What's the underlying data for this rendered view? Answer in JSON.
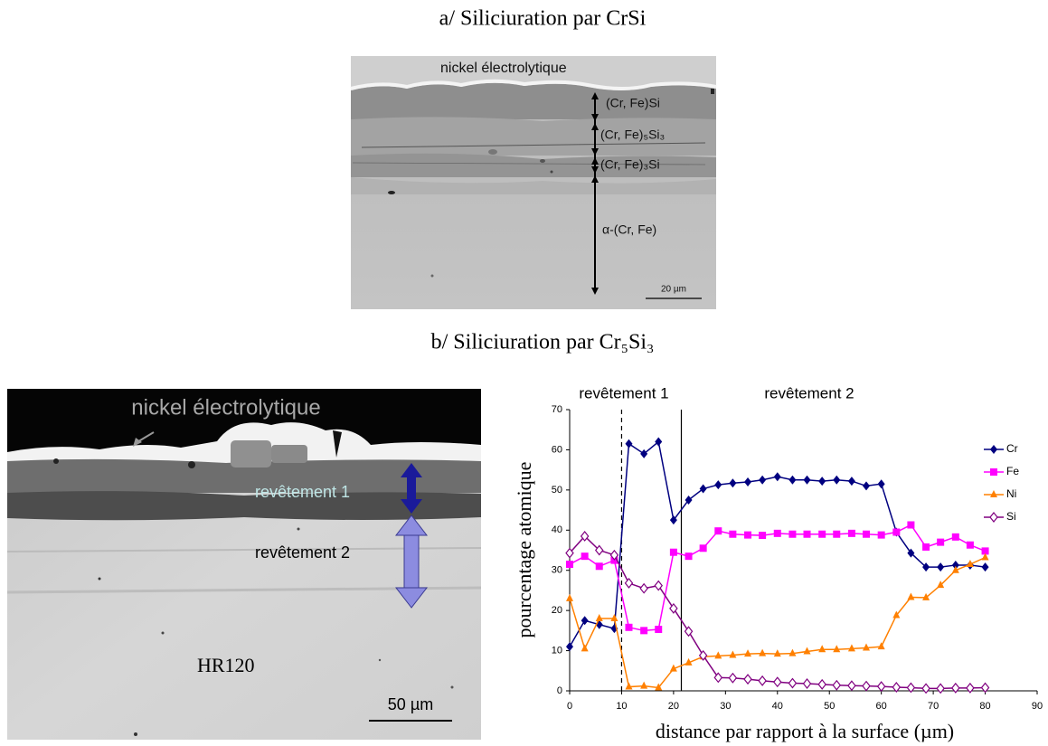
{
  "panel_a": {
    "title": "a/ Siliciuration par CrSi",
    "labels": [
      "nickel électrolytique",
      "(Cr, Fe)Si",
      "(Cr, Fe)₅Si₃",
      "(Cr, Fe)₃Si",
      "α-(Cr, Fe)"
    ],
    "scale_bar": "20 µm"
  },
  "panel_b": {
    "title": "b/ Siliciuration par Cr₅Si₃",
    "labels": [
      "nickel électrolytique",
      "revêtement 1",
      "revêtement 2",
      "HR120"
    ],
    "scale_bar": "50 µm"
  },
  "chart_data": {
    "type": "line",
    "xlabel": "distance par rapport à la surface (µm)",
    "ylabel": "pourcentage atomique",
    "annotations": [
      "revêtement 1",
      "revêtement 2"
    ],
    "reference_lines": [
      {
        "x": 10,
        "style": "dashed"
      },
      {
        "x": 21.5,
        "style": "solid"
      }
    ],
    "x": [
      0,
      2.9,
      5.7,
      8.6,
      11.4,
      14.3,
      17.1,
      20,
      22.9,
      25.7,
      28.6,
      31.4,
      34.3,
      37.1,
      40,
      42.9,
      45.7,
      48.6,
      51.4,
      54.3,
      57.1,
      60,
      62.9,
      65.7,
      68.6,
      71.4,
      74.3,
      77.1,
      80
    ],
    "series": [
      {
        "name": "Cr",
        "color": "#000080",
        "marker": "diamond",
        "values": [
          11,
          17.5,
          16.5,
          15.5,
          61.5,
          59,
          62,
          42.5,
          47.5,
          50.3,
          51.3,
          51.7,
          52,
          52.5,
          53.3,
          52.5,
          52.5,
          52.2,
          52.5,
          52.2,
          51,
          51.5,
          39.5,
          34.3,
          30.8,
          30.8,
          31.3,
          31.3,
          30.8
        ]
      },
      {
        "name": "Fe",
        "color": "#ff00ff",
        "marker": "square",
        "values": [
          31.5,
          33.5,
          31,
          32.5,
          15.8,
          15,
          15.3,
          34.5,
          33.5,
          35.5,
          39.8,
          39,
          38.8,
          38.7,
          39.2,
          39,
          39,
          39,
          39,
          39.2,
          39,
          38.8,
          39.5,
          41.3,
          35.8,
          37,
          38.3,
          36.3,
          34.8
        ]
      },
      {
        "name": "Ni",
        "color": "#ff8000",
        "marker": "triangle",
        "values": [
          23,
          10.5,
          18,
          18,
          1,
          1.2,
          0.8,
          5.5,
          7,
          8.5,
          8.7,
          8.9,
          9.2,
          9.3,
          9.2,
          9.3,
          9.8,
          10.3,
          10.3,
          10.5,
          10.7,
          11,
          18.8,
          23.3,
          23.2,
          26.3,
          30,
          31.5,
          33.2
        ]
      },
      {
        "name": "Si",
        "color": "#800080",
        "marker": "diamond-open",
        "values": [
          34.3,
          38.5,
          35,
          33.8,
          26.8,
          25.5,
          26.2,
          20.5,
          14.8,
          8.8,
          3.3,
          3.2,
          2.9,
          2.5,
          2.2,
          1.9,
          1.8,
          1.6,
          1.4,
          1.3,
          1.2,
          1.1,
          0.9,
          0.8,
          0.6,
          0.6,
          0.7,
          0.7,
          0.8
        ]
      }
    ],
    "xlim": [
      0,
      90
    ],
    "xticks": [
      0,
      10,
      20,
      30,
      40,
      50,
      60,
      70,
      80,
      90
    ],
    "ylim": [
      0,
      70
    ],
    "yticks": [
      0,
      10,
      20,
      30,
      40,
      50,
      60,
      70
    ],
    "grid": false,
    "legend": "right"
  }
}
